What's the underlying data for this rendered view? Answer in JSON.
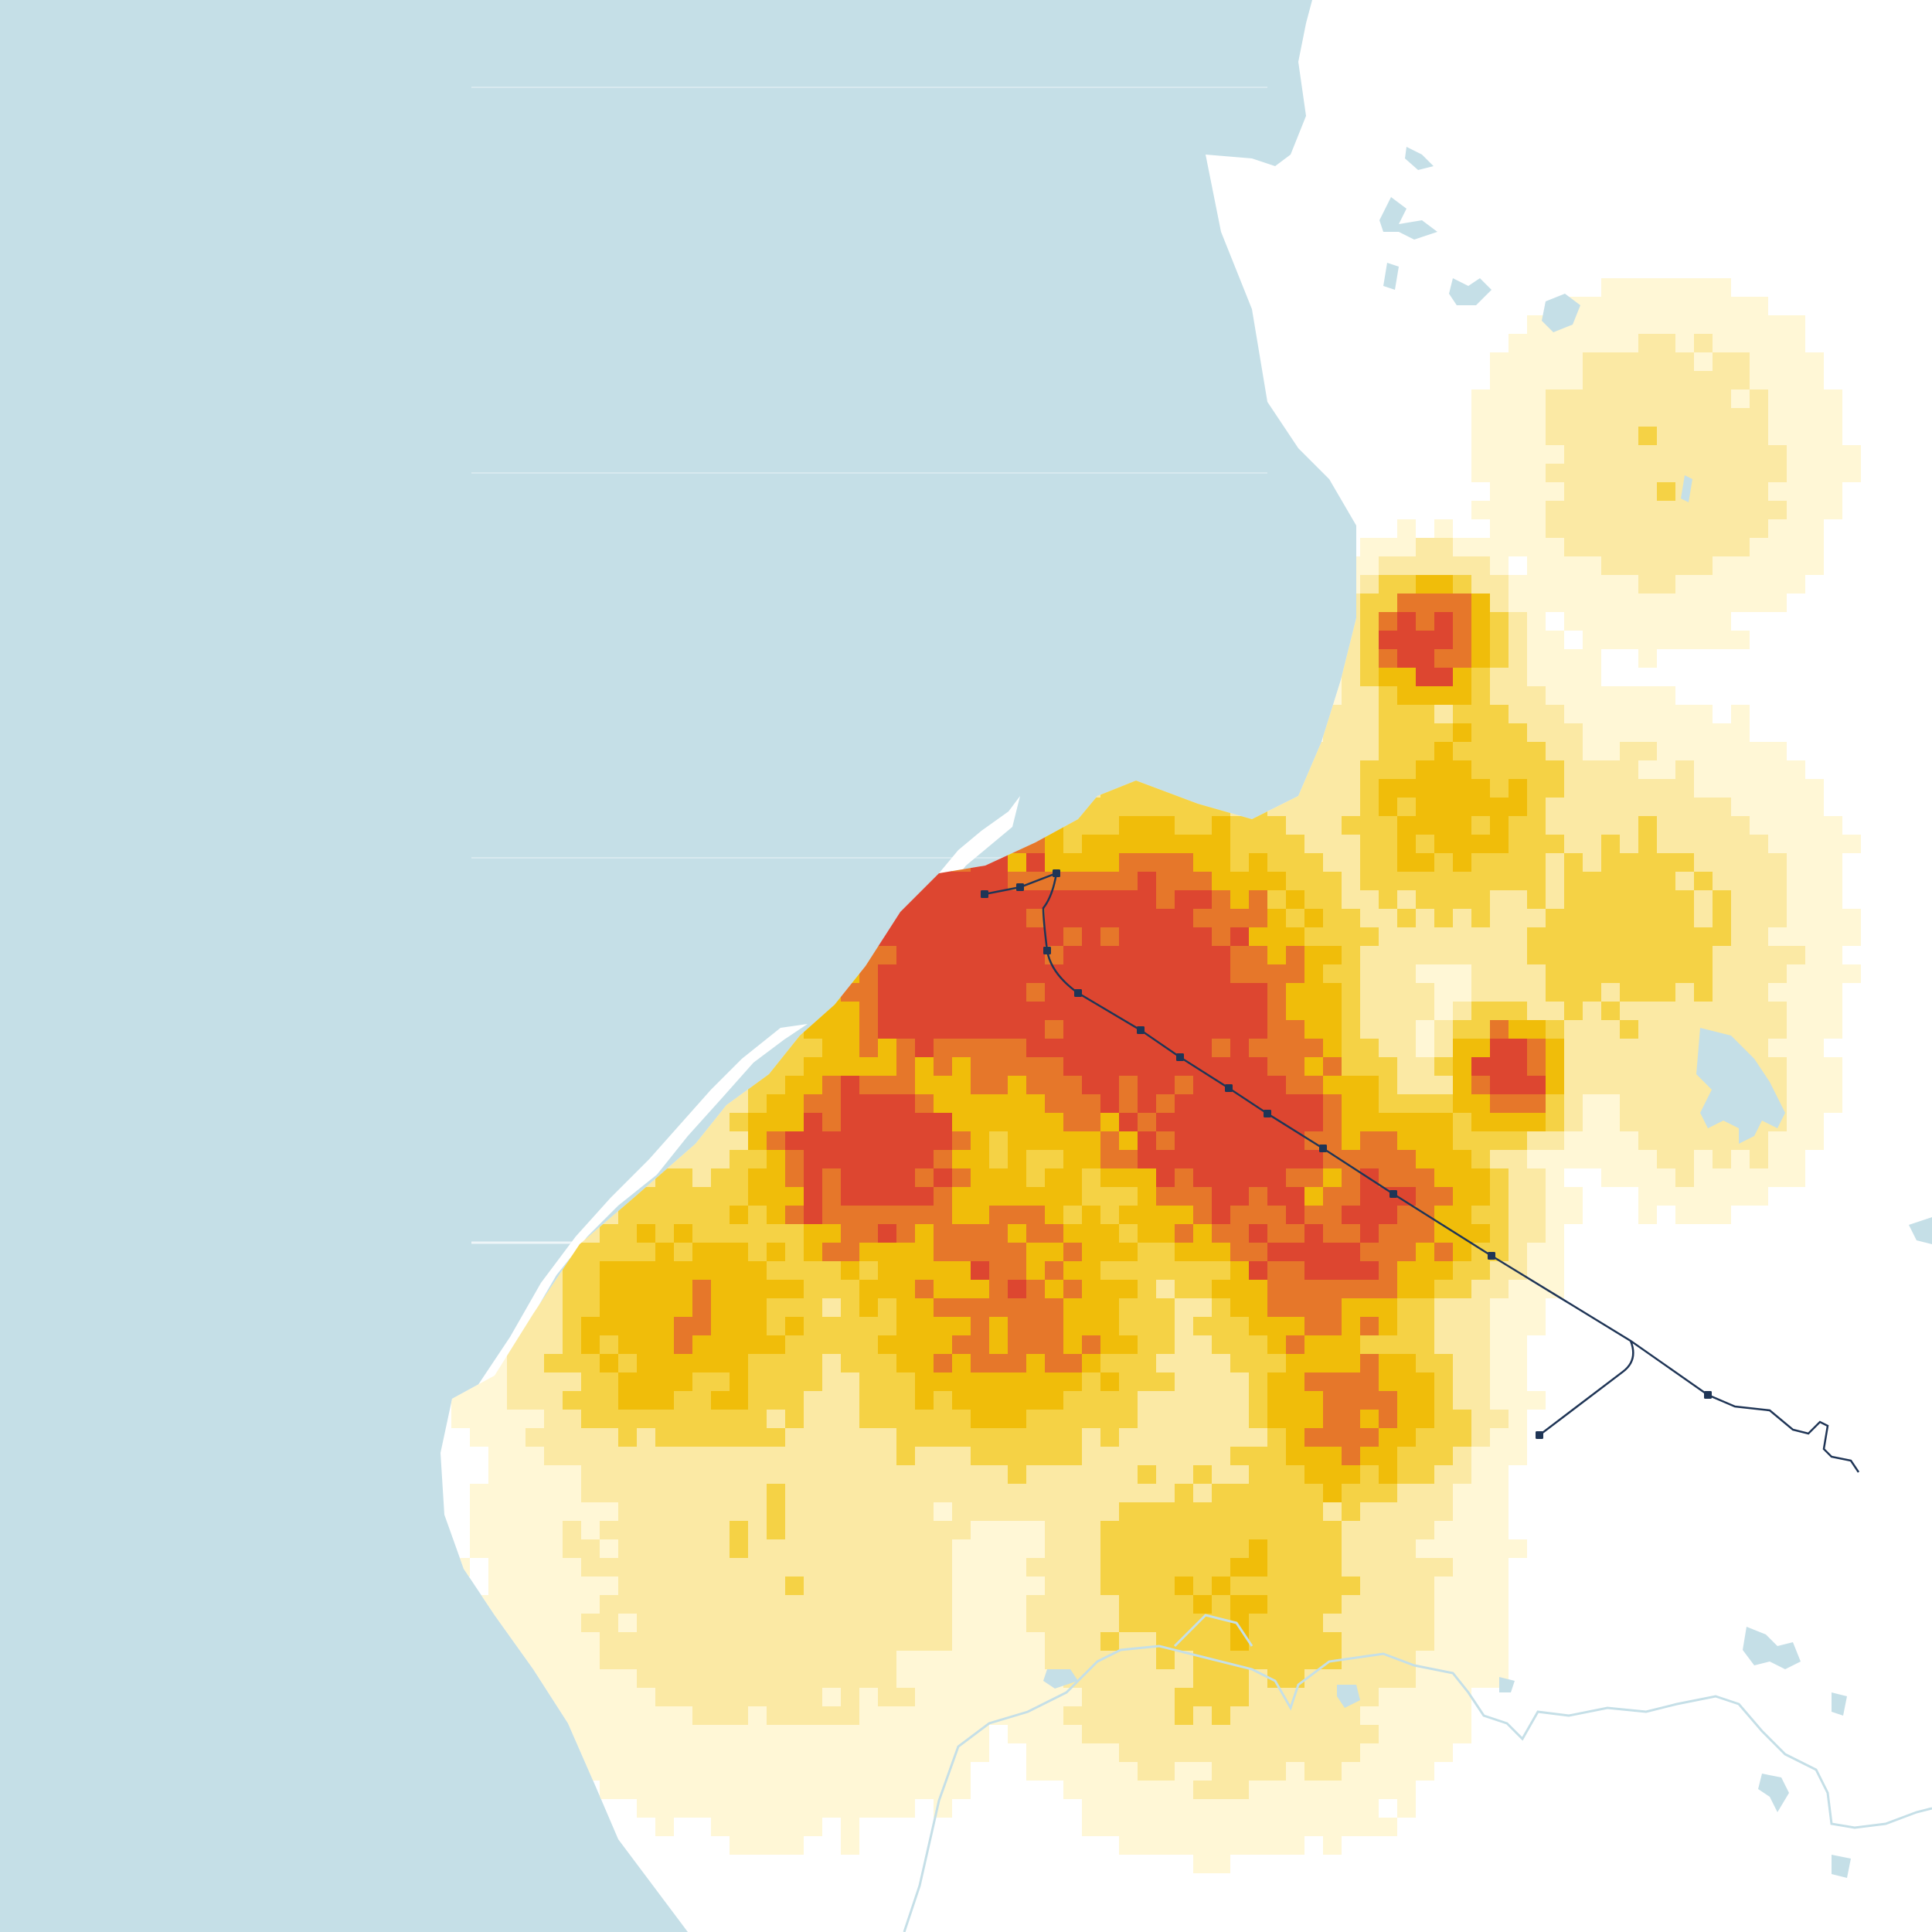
{
  "map": {
    "colors": {
      "water": "#c5dfe7",
      "land": "#ffffff",
      "density_low": "#fff7d6",
      "density_light": "#fbe9a4",
      "density_mid": "#f5d245",
      "density_strong": "#f0bd0a",
      "density_high": "#e6772a",
      "density_max": "#dd4630",
      "rail_line": "#1f3556",
      "station": "#1f3556",
      "river": "#c5dfe7"
    },
    "layers": [
      "water",
      "land",
      "population-density-grid",
      "lakes",
      "rivers",
      "rail-line",
      "stations"
    ],
    "rail_line": {
      "station_count": 15
    }
  }
}
